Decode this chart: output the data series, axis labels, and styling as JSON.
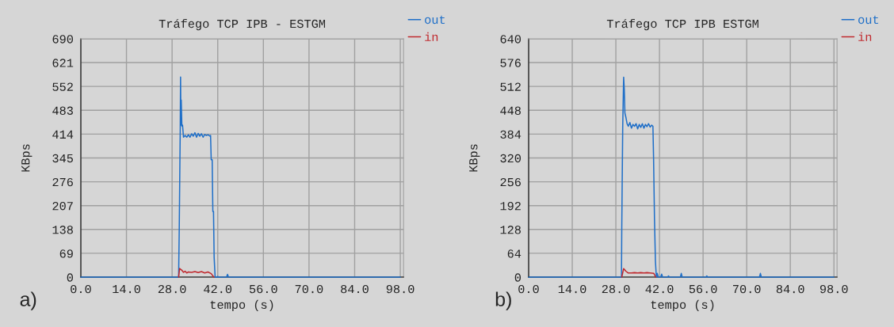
{
  "chart_data": [
    {
      "type": "line",
      "title": "Tráfego TCP IPB - ESTGM",
      "xlabel": "tempo (s)",
      "ylabel": "KBps",
      "xlim": [
        0,
        99
      ],
      "xticks": [
        {
          "value": 0,
          "label": "0.0"
        },
        {
          "value": 14,
          "label": "14.0"
        },
        {
          "value": 28,
          "label": "28.0"
        },
        {
          "value": 42,
          "label": "42.0"
        },
        {
          "value": 56,
          "label": "56.0"
        },
        {
          "value": 70,
          "label": "70.0"
        },
        {
          "value": 84,
          "label": "84.0"
        },
        {
          "value": 98,
          "label": "98.0"
        }
      ],
      "ylim": [
        0,
        690
      ],
      "yticks": [
        0,
        69,
        138,
        207,
        276,
        345,
        414,
        483,
        552,
        621,
        690
      ],
      "grid": true,
      "legend": "top right",
      "marker": "none",
      "line_style": "solid",
      "annotations": [
        "a)"
      ],
      "series": [
        {
          "name": "out",
          "color": "#1f6fc8",
          "x": [
            0,
            30.0,
            30.2,
            30.5,
            30.6,
            30.7,
            30.8,
            31.0,
            31.2,
            31.5,
            32,
            32.5,
            33,
            33.5,
            34,
            34.5,
            35,
            35.5,
            36,
            36.5,
            37,
            37.5,
            38,
            38.5,
            39,
            39.6,
            39.8,
            40.0,
            40.3,
            40.5,
            40.7,
            40.9,
            41.2,
            41.8,
            42,
            42.3,
            44.7,
            45,
            45.3,
            98
          ],
          "values": [
            0,
            0,
            145,
            433,
            579,
            440,
            513,
            437,
            440,
            405,
            410,
            405,
            412,
            405,
            415,
            408,
            418,
            405,
            416,
            408,
            415,
            405,
            413,
            410,
            412,
            408,
            410,
            340,
            340,
            190,
            190,
            57,
            0,
            0,
            2,
            0,
            0,
            8,
            0,
            0
          ]
        },
        {
          "name": "in",
          "color": "#c0282d",
          "x": [
            30.0,
            30.3,
            31,
            31.5,
            32,
            32.5,
            33,
            34,
            35,
            36,
            37,
            38,
            39,
            40,
            40.8
          ],
          "values": [
            0,
            25,
            20,
            14,
            17,
            12,
            15,
            14,
            16,
            13,
            16,
            12,
            15,
            10,
            0
          ]
        }
      ]
    },
    {
      "type": "line",
      "title": "Tráfego TCP IPB ESTGM",
      "xlabel": "tempo (s)",
      "ylabel": "KBps",
      "xlim": [
        0,
        99
      ],
      "xticks": [
        {
          "value": 0,
          "label": "0.0"
        },
        {
          "value": 14,
          "label": "14.0"
        },
        {
          "value": 28,
          "label": "28.0"
        },
        {
          "value": 42,
          "label": "42.0"
        },
        {
          "value": 56,
          "label": "56.0"
        },
        {
          "value": 70,
          "label": "70.0"
        },
        {
          "value": 84,
          "label": "84.0"
        },
        {
          "value": 98,
          "label": "98.0"
        }
      ],
      "ylim": [
        0,
        640
      ],
      "yticks": [
        0,
        64,
        128,
        192,
        256,
        320,
        384,
        448,
        512,
        576,
        640
      ],
      "grid": true,
      "legend": "top right",
      "marker": "none",
      "line_style": "solid",
      "annotations": [
        "b)"
      ],
      "series": [
        {
          "name": "out",
          "color": "#1f6fc8",
          "x": [
            0,
            29.8,
            29.9,
            30.2,
            30.5,
            30.7,
            30.9,
            31.2,
            31.6,
            32,
            32.5,
            33,
            33.5,
            34,
            34.5,
            35,
            35.5,
            36,
            36.5,
            37,
            37.5,
            38,
            38.5,
            39,
            39.5,
            39.9,
            40.1,
            40.4,
            40.7,
            41.0,
            41.3,
            41.6,
            42.4,
            42.7,
            43.0,
            44.6,
            44.9,
            45.2,
            48.7,
            49.0,
            49.3,
            56.9,
            57.2,
            57.5,
            74.1,
            74.4,
            74.7,
            98
          ],
          "values": [
            0,
            0,
            131,
            402,
            537,
            505,
            441,
            430,
            412,
            405,
            415,
            400,
            410,
            405,
            412,
            398,
            410,
            402,
            412,
            400,
            410,
            404,
            412,
            403,
            408,
            405,
            323,
            156,
            43,
            0,
            10,
            0,
            0,
            8,
            0,
            0,
            3,
            0,
            0,
            10,
            0,
            0,
            3,
            0,
            0,
            10,
            0,
            0
          ]
        },
        {
          "name": "in",
          "color": "#c0282d",
          "x": [
            29.9,
            30.5,
            31.2,
            32,
            33,
            34,
            35,
            36,
            37,
            38,
            39,
            40.2,
            40.8
          ],
          "values": [
            0,
            23,
            16,
            11,
            11,
            12,
            11,
            12,
            11,
            12,
            11,
            10,
            0
          ]
        }
      ]
    }
  ]
}
